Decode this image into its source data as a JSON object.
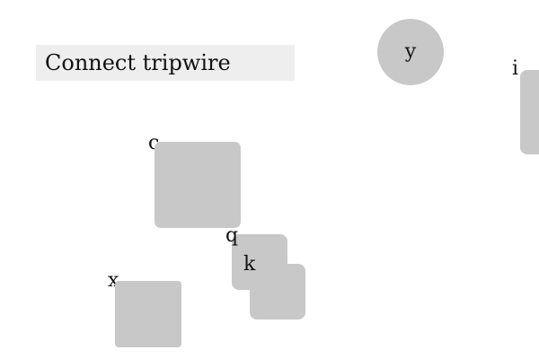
{
  "instruction": {
    "text": "Connect tripwire"
  },
  "objects": {
    "c": {
      "label": "c"
    },
    "q": {
      "label": "q"
    },
    "k": {
      "label": "k"
    },
    "x": {
      "label": "x"
    },
    "y": {
      "label": "y"
    },
    "i": {
      "label": "i"
    }
  },
  "colors": {
    "shape_fill": "#c8c8c8",
    "instruction_background": "#eeeeee"
  }
}
